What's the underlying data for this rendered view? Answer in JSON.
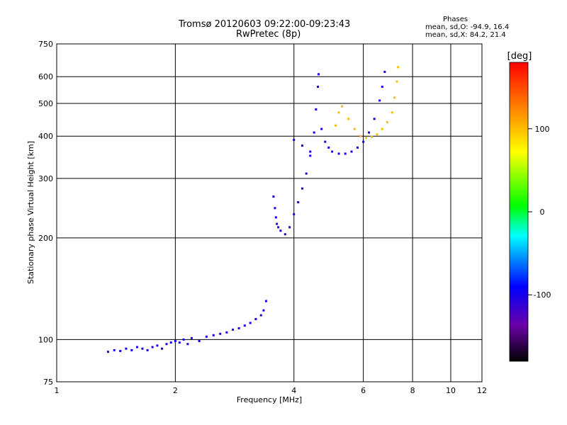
{
  "header": {
    "title_line1": "Tromsø 20120603 09:22:00-09:23:43",
    "title_line2": "RwPretec (8p)"
  },
  "phases_box": {
    "title": "Phases",
    "line_o": "mean, sd,O: -94.9, 16.4",
    "line_x": "mean, sd,X:  84.2, 21.4"
  },
  "chart_data": {
    "type": "scatter",
    "xlabel": "Frequency [MHz]",
    "ylabel": "Stationary phase Virtual Height [km]",
    "xscale": "log",
    "yscale": "log",
    "xlim": [
      1,
      12
    ],
    "ylim": [
      75,
      750
    ],
    "x_ticks": [
      1,
      2,
      4,
      6,
      8,
      10,
      12
    ],
    "x_tick_labels": [
      "1",
      "2",
      "4",
      "6",
      "8",
      "10",
      "12"
    ],
    "y_ticks": [
      75,
      100,
      200,
      300,
      400,
      500,
      600,
      750
    ],
    "y_tick_labels": [
      "75",
      "100",
      "200",
      "300",
      "400",
      "500",
      "600",
      "750"
    ],
    "grid": true,
    "colorbar": {
      "label": "[deg]",
      "range": [
        -180,
        180
      ],
      "ticks": [
        100,
        0,
        -100
      ],
      "tick_labels": [
        "100",
        "0",
        "-100"
      ],
      "stops": [
        "#000000",
        "#6a00a8",
        "#0000ff",
        "#00ffff",
        "#00ff00",
        "#ffff00",
        "#ff8000",
        "#ff0000"
      ]
    },
    "series": [
      {
        "points": [
          [
            1.35,
            92
          ],
          [
            1.4,
            93
          ],
          [
            1.45,
            92.5
          ],
          [
            1.5,
            94
          ],
          [
            1.55,
            93
          ],
          [
            1.6,
            95
          ],
          [
            1.65,
            94
          ],
          [
            1.7,
            93
          ],
          [
            1.75,
            95
          ],
          [
            1.8,
            96
          ],
          [
            1.85,
            94
          ],
          [
            1.9,
            97
          ],
          [
            1.95,
            98
          ],
          [
            2.0,
            99
          ],
          [
            2.05,
            98
          ],
          [
            2.1,
            100
          ],
          [
            2.15,
            97
          ],
          [
            2.2,
            101
          ],
          [
            2.3,
            99
          ],
          [
            2.4,
            102
          ],
          [
            2.5,
            103
          ],
          [
            2.6,
            104
          ],
          [
            2.7,
            105
          ],
          [
            2.8,
            107
          ],
          [
            2.9,
            108
          ],
          [
            3.0,
            110
          ],
          [
            3.1,
            112
          ],
          [
            3.2,
            115
          ],
          [
            3.3,
            118
          ],
          [
            3.35,
            122
          ],
          [
            3.4,
            130
          ],
          [
            3.55,
            265
          ],
          [
            3.58,
            245
          ],
          [
            3.6,
            230
          ],
          [
            3.62,
            220
          ],
          [
            3.65,
            215
          ],
          [
            3.7,
            210
          ],
          [
            3.8,
            205
          ],
          [
            3.9,
            215
          ],
          [
            4.0,
            235
          ],
          [
            4.1,
            255
          ],
          [
            4.2,
            280
          ],
          [
            4.3,
            310
          ],
          [
            4.4,
            350
          ],
          [
            4.5,
            410
          ],
          [
            4.55,
            480
          ],
          [
            4.6,
            560
          ],
          [
            4.62,
            610
          ],
          [
            4.0,
            390
          ],
          [
            4.2,
            375
          ],
          [
            4.4,
            360
          ],
          [
            4.7,
            420
          ],
          [
            4.8,
            385
          ],
          [
            4.9,
            370
          ],
          [
            5.0,
            360
          ],
          [
            5.2,
            355
          ],
          [
            5.4,
            355
          ],
          [
            5.6,
            360
          ],
          [
            5.8,
            370
          ],
          [
            6.0,
            385
          ],
          [
            6.2,
            410
          ],
          [
            6.4,
            450
          ],
          [
            6.6,
            510
          ],
          [
            6.7,
            560
          ],
          [
            6.8,
            620
          ]
        ],
        "phase": -100
      },
      {
        "points": [
          [
            5.1,
            430
          ],
          [
            5.2,
            470
          ],
          [
            5.3,
            490
          ],
          [
            5.5,
            450
          ],
          [
            5.7,
            420
          ],
          [
            5.9,
            400
          ],
          [
            6.1,
            395
          ],
          [
            6.3,
            398
          ],
          [
            6.5,
            405
          ],
          [
            6.7,
            420
          ],
          [
            6.9,
            440
          ],
          [
            7.1,
            470
          ],
          [
            7.2,
            520
          ],
          [
            7.3,
            580
          ],
          [
            7.35,
            640
          ]
        ],
        "phase": 100
      }
    ]
  }
}
